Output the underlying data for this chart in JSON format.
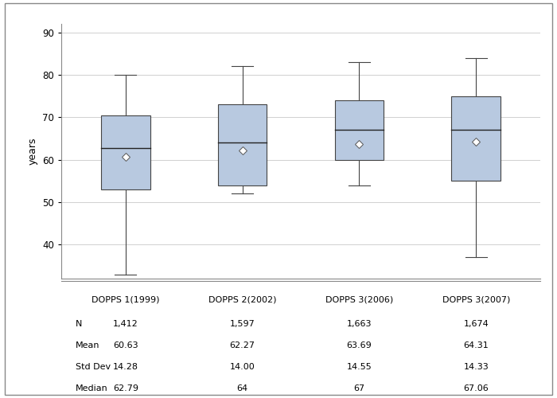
{
  "ylabel": "years",
  "ylim": [
    32,
    92
  ],
  "yticks": [
    40,
    50,
    60,
    70,
    80,
    90
  ],
  "categories": [
    "DOPPS 1(1999)",
    "DOPPS 2(2002)",
    "DOPPS 3(2006)",
    "DOPPS 3(2007)"
  ],
  "boxes": [
    {
      "q1": 53.0,
      "median": 62.79,
      "q3": 70.5,
      "whislo": 33.0,
      "whishi": 80.0,
      "mean": 60.63
    },
    {
      "q1": 54.0,
      "median": 64.0,
      "q3": 73.0,
      "whislo": 52.0,
      "whishi": 82.0,
      "mean": 62.27
    },
    {
      "q1": 60.0,
      "median": 67.0,
      "q3": 74.0,
      "whislo": 54.0,
      "whishi": 83.0,
      "mean": 63.69
    },
    {
      "q1": 55.0,
      "median": 67.06,
      "q3": 75.0,
      "whislo": 37.0,
      "whishi": 84.0,
      "mean": 64.31
    }
  ],
  "box_color": "#b8c9e0",
  "box_edge_color": "#444444",
  "median_color": "#222222",
  "whisker_color": "#444444",
  "mean_marker": "D",
  "mean_marker_color": "white",
  "mean_marker_edge_color": "#555555",
  "mean_marker_size": 5,
  "table_rows": [
    "N",
    "Mean",
    "Std Dev",
    "Median"
  ],
  "table_data": [
    [
      "1,412",
      "1,597",
      "1,663",
      "1,674"
    ],
    [
      "60.63",
      "62.27",
      "63.69",
      "64.31"
    ],
    [
      "14.28",
      "14.00",
      "14.55",
      "14.33"
    ],
    [
      "62.79",
      "64",
      "67",
      "67.06"
    ]
  ],
  "background_color": "#ffffff",
  "grid_color": "#d0d0d0",
  "border_color": "#888888",
  "figsize": [
    7.0,
    5.0
  ],
  "dpi": 100
}
